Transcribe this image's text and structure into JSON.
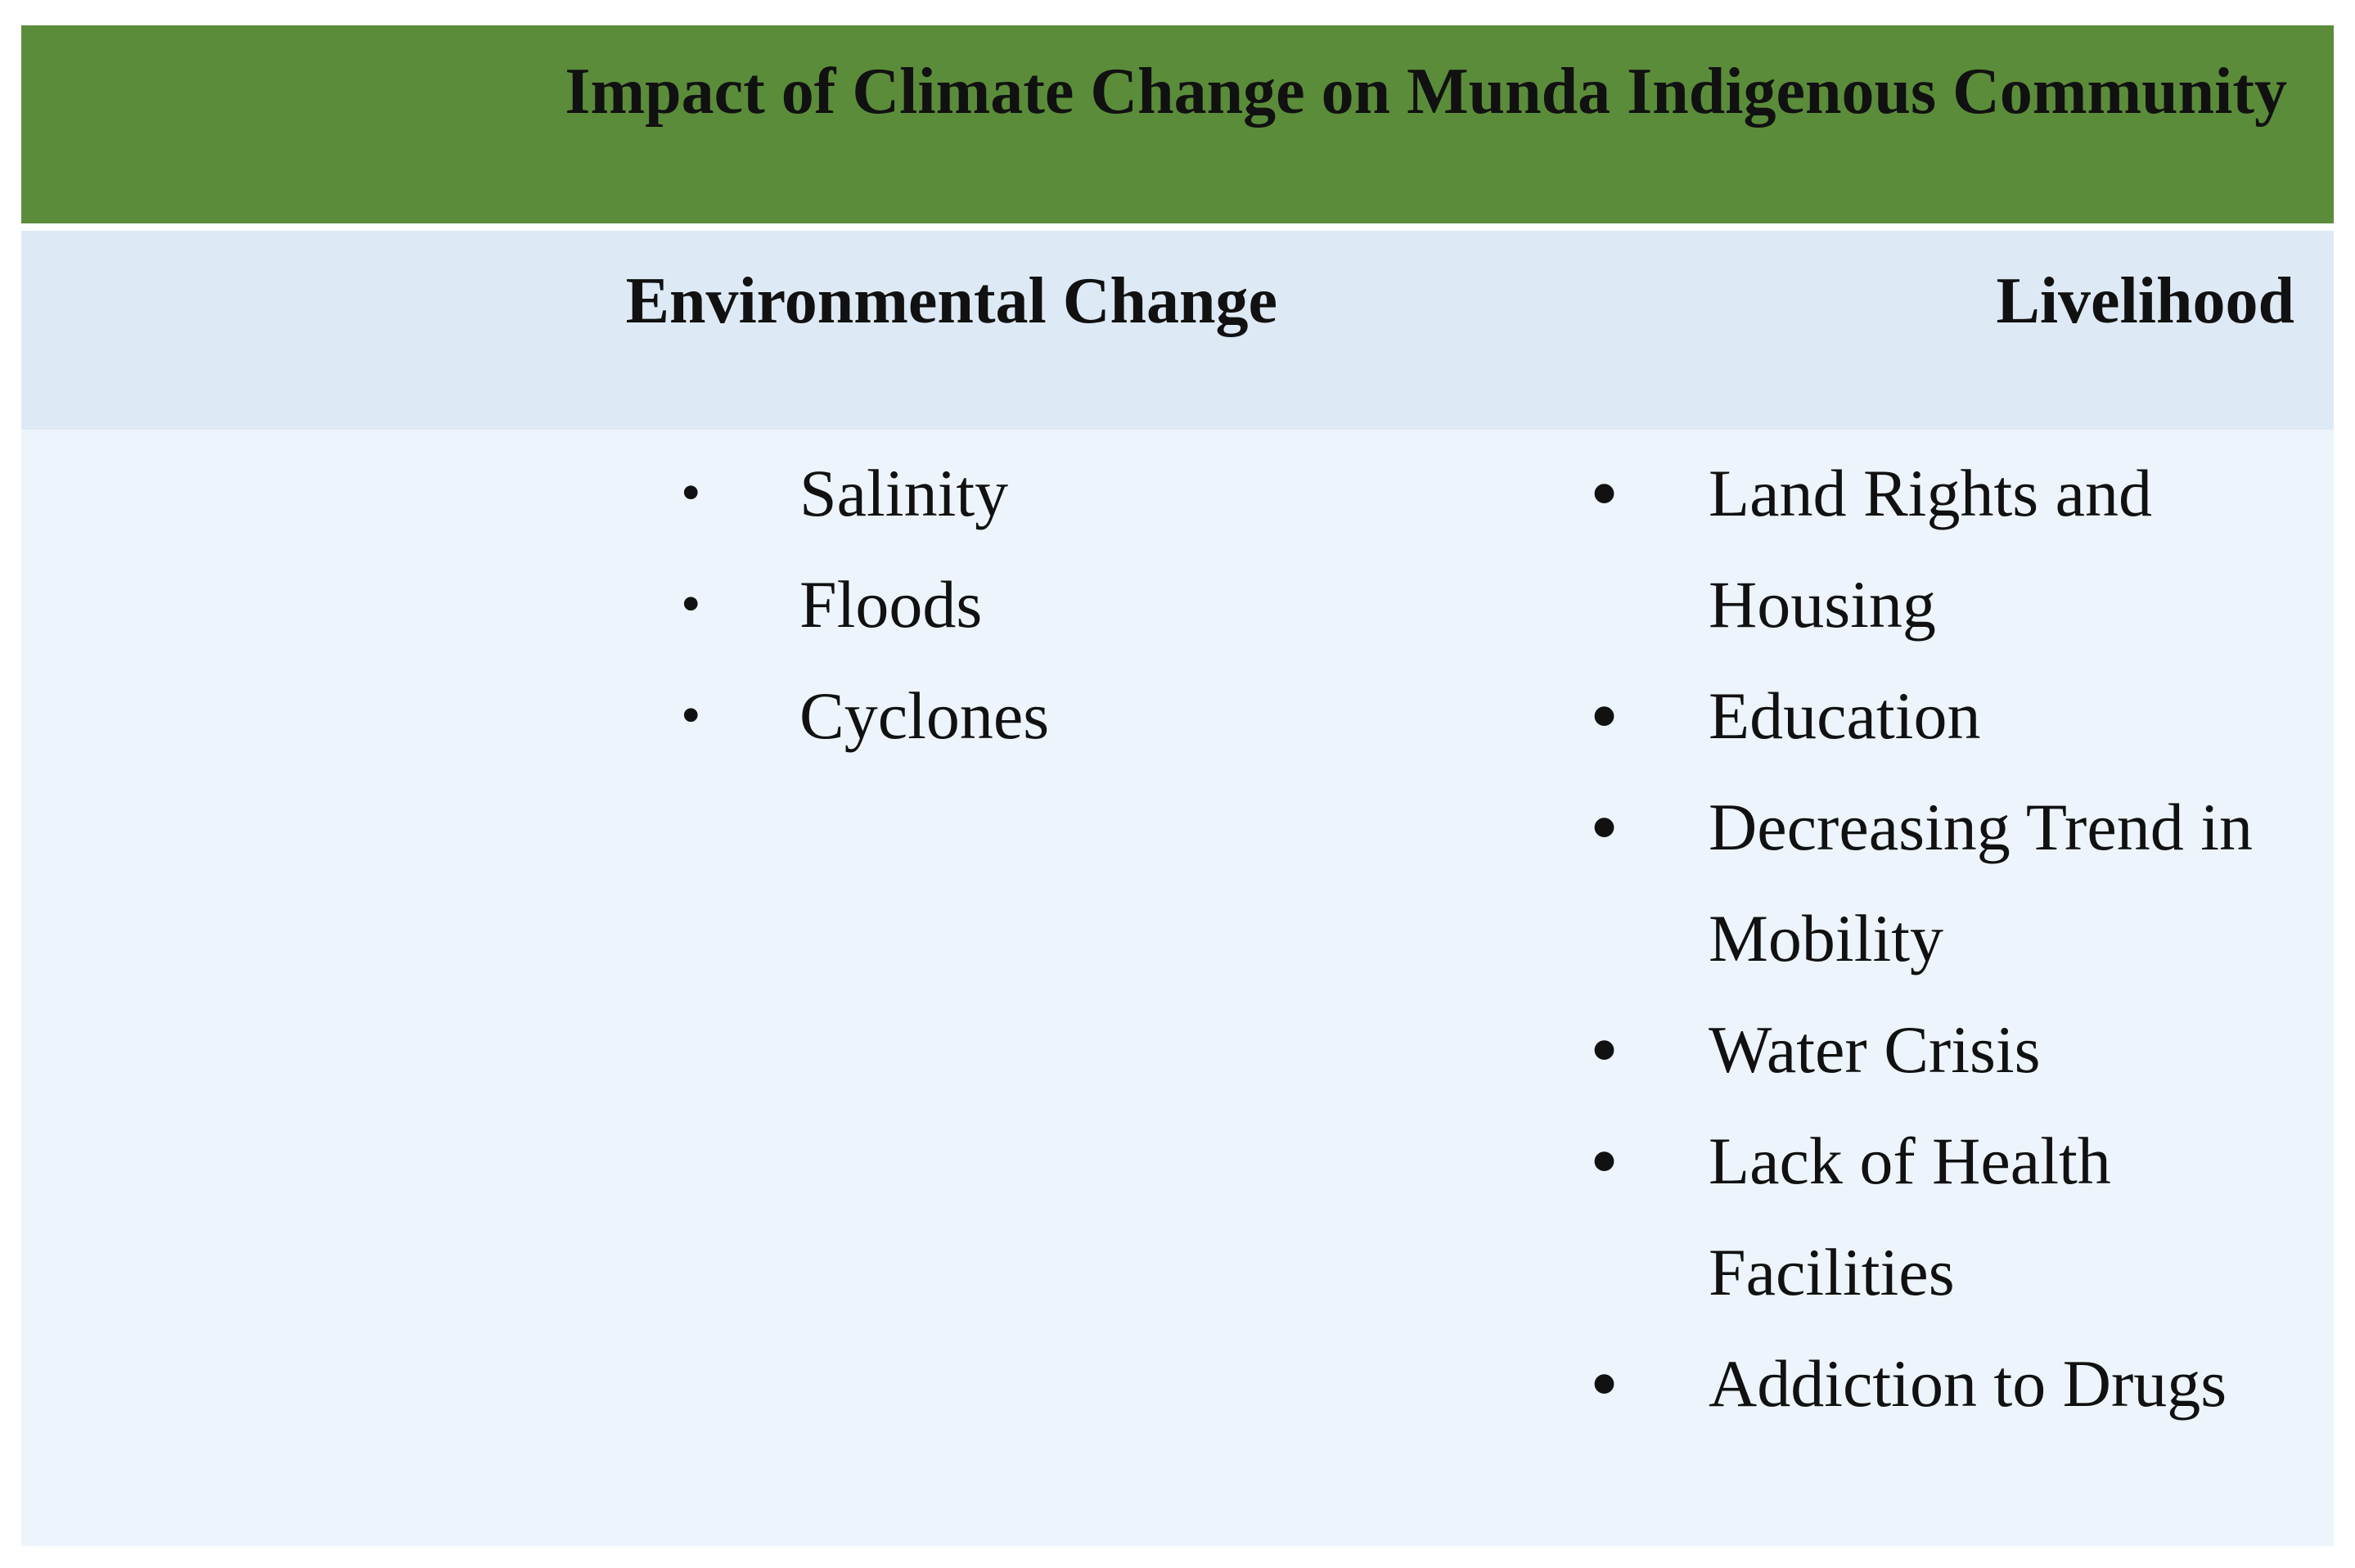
{
  "title": "Impact of Climate Change on Munda Indigenous Community",
  "columns": [
    {
      "header": "Environmental Change",
      "items": [
        "Salinity",
        "Floods",
        "Cyclones"
      ]
    },
    {
      "header": "Livelihood",
      "items": [
        "Land Rights and Housing",
        "Education",
        "Decreasing Trend in Mobility",
        "Water Crisis",
        "Lack of Health Facilities",
        "Addiction to Drugs"
      ]
    }
  ]
}
